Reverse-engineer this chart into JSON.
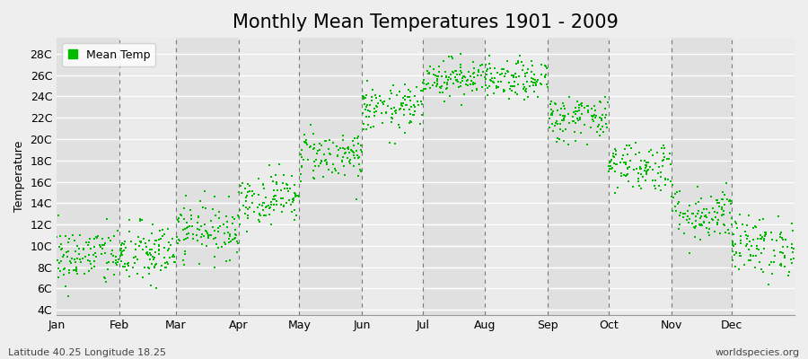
{
  "title": "Monthly Mean Temperatures 1901 - 2009",
  "ylabel": "Temperature",
  "xlabel_labels": [
    "Jan",
    "Feb",
    "Mar",
    "Apr",
    "May",
    "Jun",
    "Jul",
    "Aug",
    "Sep",
    "Oct",
    "Nov",
    "Dec"
  ],
  "ytick_labels": [
    "4C",
    "6C",
    "8C",
    "10C",
    "12C",
    "14C",
    "16C",
    "18C",
    "20C",
    "22C",
    "24C",
    "26C",
    "28C"
  ],
  "ytick_values": [
    4,
    6,
    8,
    10,
    12,
    14,
    16,
    18,
    20,
    22,
    24,
    26,
    28
  ],
  "ylim": [
    3.5,
    29.5
  ],
  "dot_color": "#00bb00",
  "background_color": "#eeeeee",
  "stripe_dark": "#dddddd",
  "stripe_light": "#f0f0f0",
  "legend_label": "Mean Temp",
  "footer_left": "Latitude 40.25 Longitude 18.25",
  "footer_right": "worldspecies.org",
  "title_fontsize": 15,
  "axis_fontsize": 9,
  "footer_fontsize": 8,
  "monthly_means": [
    9.0,
    9.2,
    11.5,
    14.5,
    18.5,
    22.8,
    25.8,
    25.5,
    22.0,
    17.5,
    13.0,
    10.0
  ],
  "monthly_stds": [
    1.4,
    1.5,
    1.3,
    1.2,
    1.2,
    1.1,
    0.9,
    0.9,
    1.1,
    1.2,
    1.3,
    1.4
  ],
  "n_years": 109,
  "random_seed": 42
}
